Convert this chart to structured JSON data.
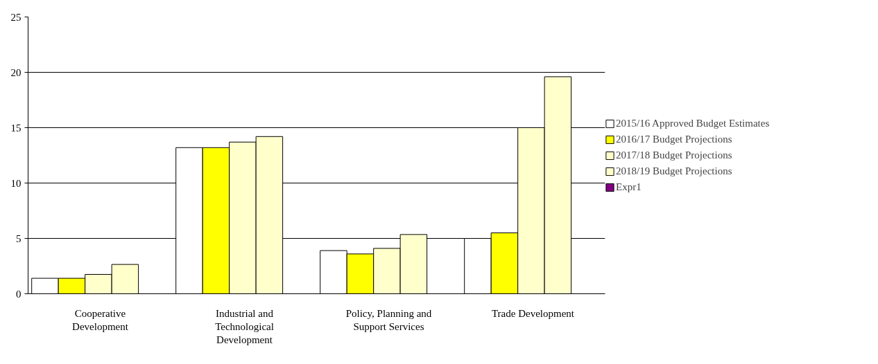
{
  "chart_data": {
    "type": "bar",
    "categories": [
      "Cooperative Development",
      "Industrial and Technological Development",
      "Policy, Planning and Support Services",
      "Trade Development"
    ],
    "series": [
      {
        "name": "2015/16 Approved Budget Estimates",
        "color": "#ffffff",
        "values": [
          1.4,
          13.2,
          3.9,
          5.0
        ]
      },
      {
        "name": "2016/17 Budget Projections",
        "color": "#ffff00",
        "values": [
          1.4,
          13.2,
          3.6,
          5.5
        ]
      },
      {
        "name": "2017/18 Budget Projections",
        "color": "#ffffcc",
        "values": [
          1.75,
          13.7,
          4.1,
          15.0
        ]
      },
      {
        "name": "2018/19 Budget Projections",
        "color": "#ffffcc",
        "values": [
          2.65,
          14.2,
          5.35,
          19.6
        ]
      },
      {
        "name": "Expr1",
        "color": "#800080",
        "values": [
          null,
          null,
          null,
          null
        ]
      }
    ],
    "ylim": [
      0,
      25
    ],
    "yticks": [
      0,
      5,
      10,
      15,
      20,
      25
    ],
    "grid": "y",
    "legend": "right"
  }
}
